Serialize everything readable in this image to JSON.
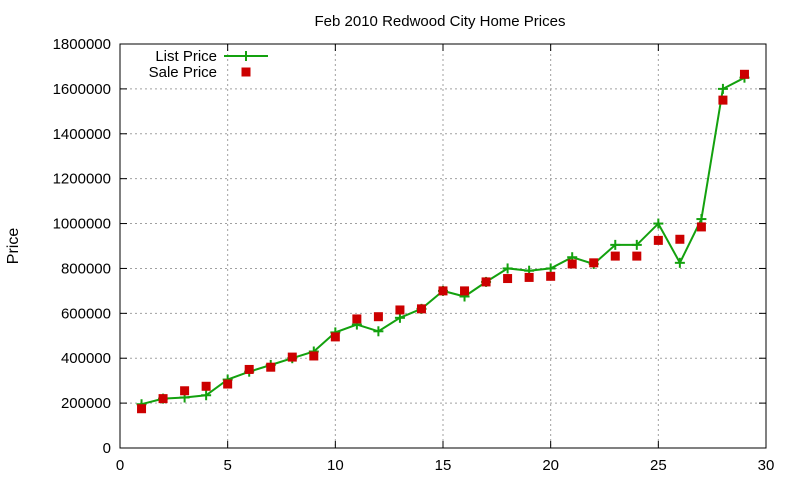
{
  "chart_data": {
    "type": "line",
    "title": "Feb 2010 Redwood City Home Prices",
    "xlabel": "",
    "ylabel": "Price",
    "xlim": [
      0,
      30
    ],
    "ylim": [
      0,
      1800000
    ],
    "xticks": [
      0,
      5,
      10,
      15,
      20,
      25,
      30
    ],
    "yticks": [
      0,
      200000,
      400000,
      600000,
      800000,
      1000000,
      1200000,
      1400000,
      1600000,
      1800000
    ],
    "grid": true,
    "legend": "top-left",
    "series": [
      {
        "name": "List Price",
        "style": "line+cross",
        "color": "#13a10e",
        "x": [
          1,
          2,
          3,
          4,
          5,
          6,
          7,
          8,
          9,
          10,
          11,
          12,
          13,
          14,
          15,
          16,
          17,
          18,
          19,
          20,
          21,
          22,
          23,
          24,
          25,
          26,
          27,
          28,
          29
        ],
        "y": [
          195000,
          220000,
          225000,
          235000,
          305000,
          340000,
          370000,
          400000,
          430000,
          515000,
          550000,
          520000,
          580000,
          620000,
          700000,
          675000,
          740000,
          800000,
          790000,
          800000,
          850000,
          820000,
          905000,
          905000,
          1000000,
          825000,
          1020000,
          1600000,
          1650000
        ]
      },
      {
        "name": "Sale Price",
        "style": "square",
        "color": "#cc0000",
        "x": [
          1,
          2,
          3,
          4,
          5,
          6,
          7,
          8,
          9,
          10,
          11,
          12,
          13,
          14,
          15,
          16,
          17,
          18,
          19,
          20,
          21,
          22,
          23,
          24,
          25,
          26,
          27,
          28,
          29
        ],
        "y": [
          175000,
          220000,
          255000,
          275000,
          285000,
          350000,
          360000,
          405000,
          410000,
          495000,
          575000,
          585000,
          615000,
          620000,
          700000,
          700000,
          740000,
          755000,
          760000,
          765000,
          820000,
          825000,
          855000,
          855000,
          925000,
          930000,
          985000,
          1550000,
          1665000
        ]
      }
    ]
  }
}
